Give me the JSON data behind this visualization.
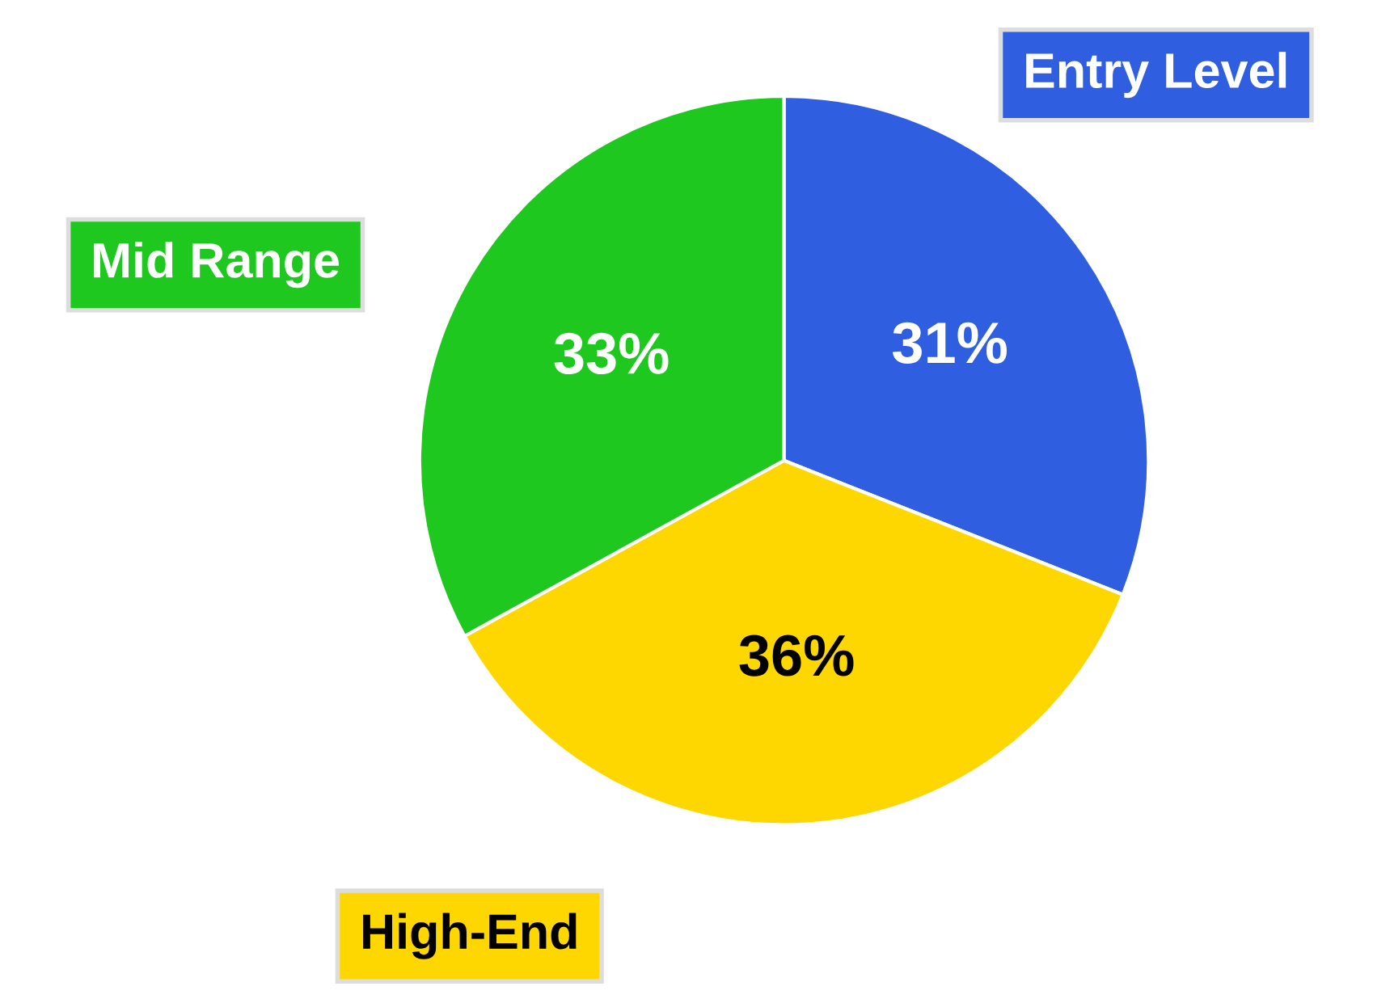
{
  "chart_data": {
    "type": "pie",
    "categories": [
      "Entry Level",
      "High-End",
      "Mid Range"
    ],
    "values": [
      31,
      36,
      33
    ],
    "colors": [
      "#2f5fe0",
      "#ffd700",
      "#1ec81e"
    ],
    "value_labels": [
      "31%",
      "36%",
      "33%"
    ]
  }
}
